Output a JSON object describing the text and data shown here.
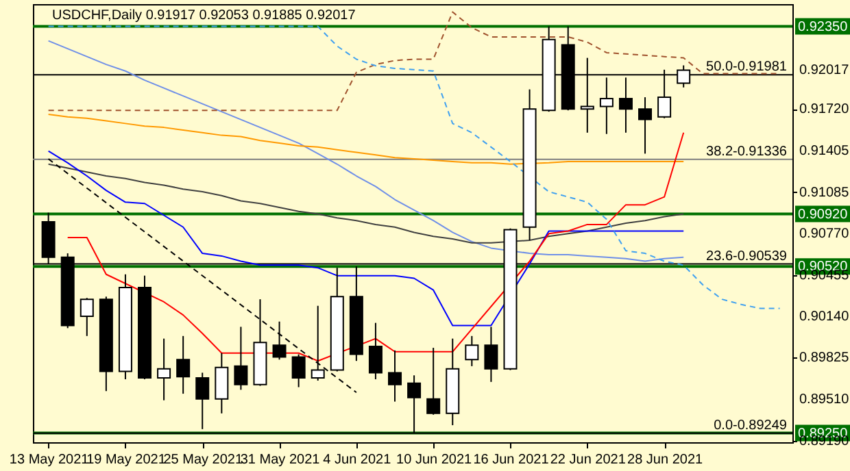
{
  "chart_data": {
    "type": "candlestick",
    "title": "USDCHF,Daily  0.91917 0.92053 0.91885 0.92017",
    "categories": [
      "13 May 2021",
      null,
      null,
      null,
      "19 May 2021",
      null,
      null,
      null,
      "25 May 2021",
      null,
      null,
      null,
      "31 May 2021",
      null,
      null,
      null,
      "4 Jun 2021",
      null,
      null,
      null,
      "10 Jun 2021",
      null,
      null,
      null,
      "16 Jun 2021",
      null,
      null,
      null,
      "22 Jun 2021",
      null,
      null,
      null,
      "28 Jun 2021",
      null,
      null,
      null,
      null,
      null,
      null
    ],
    "ohlc": [
      [
        0.9086,
        0.9093,
        0.9054,
        0.9059
      ],
      [
        0.9059,
        0.9062,
        0.9005,
        0.9007
      ],
      [
        0.9014,
        0.9028,
        0.8999,
        0.9027
      ],
      [
        0.9027,
        0.9029,
        0.8957,
        0.8972
      ],
      [
        0.8972,
        0.9046,
        0.8966,
        0.9036
      ],
      [
        0.9036,
        0.9045,
        0.8966,
        0.8967
      ],
      [
        0.8967,
        0.8997,
        0.895,
        0.8974
      ],
      [
        0.8981,
        0.8999,
        0.8955,
        0.8968
      ],
      [
        0.8967,
        0.8971,
        0.8928,
        0.8951
      ],
      [
        0.8951,
        0.8986,
        0.894,
        0.8975
      ],
      [
        0.8976,
        0.9006,
        0.8958,
        0.8962
      ],
      [
        0.8962,
        0.9027,
        0.8961,
        0.8994
      ],
      [
        0.8992,
        0.901,
        0.8981,
        0.8983
      ],
      [
        0.8983,
        0.8985,
        0.896,
        0.8967
      ],
      [
        0.8967,
        0.9022,
        0.8965,
        0.8973
      ],
      [
        0.8973,
        0.9051,
        0.8972,
        0.9029
      ],
      [
        0.9029,
        0.9052,
        0.898,
        0.8985
      ],
      [
        0.8991,
        0.9009,
        0.8966,
        0.8971
      ],
      [
        0.8971,
        0.8988,
        0.8949,
        0.8962
      ],
      [
        0.8963,
        0.8969,
        0.89249,
        0.8952
      ],
      [
        0.8951,
        0.899,
        0.8939,
        0.894
      ],
      [
        0.894,
        0.8997,
        0.8931,
        0.8974
      ],
      [
        0.8981,
        0.8999,
        0.8976,
        0.8992
      ],
      [
        0.8992,
        0.9006,
        0.8964,
        0.8974
      ],
      [
        0.8974,
        0.9081,
        0.8973,
        0.908
      ],
      [
        0.9082,
        0.9187,
        0.9072,
        0.9172
      ],
      [
        0.9171,
        0.9235,
        0.917,
        0.9225
      ],
      [
        0.9221,
        0.9235,
        0.9171,
        0.9172
      ],
      [
        0.9172,
        0.9211,
        0.9154,
        0.9174
      ],
      [
        0.9174,
        0.9196,
        0.9153,
        0.918
      ],
      [
        0.918,
        0.9196,
        0.9154,
        0.9172
      ],
      [
        0.9172,
        0.9181,
        0.9138,
        0.9164
      ],
      [
        0.9166,
        0.9202,
        0.9165,
        0.9181
      ],
      [
        0.91917,
        0.92053,
        0.91885,
        0.92017
      ],
      null,
      null,
      null,
      null,
      null
    ],
    "series": [
      {
        "type": "line",
        "color": "#6f8fe8",
        "values": [
          0.9224,
          0.9218,
          0.9212,
          0.9206,
          0.9201,
          0.9194,
          0.9188,
          0.9182,
          0.9176,
          0.917,
          0.9164,
          0.9158,
          0.9152,
          0.9146,
          0.9138,
          0.913,
          0.9121,
          0.9113,
          0.9103,
          0.9095,
          0.9087,
          0.9078,
          0.9071,
          0.9066,
          null,
          0.9062,
          0.9061,
          0.9061,
          0.906,
          0.9059,
          0.9058,
          0.9056,
          0.9058,
          0.9059,
          null,
          null,
          null,
          null,
          null
        ]
      },
      {
        "type": "line",
        "color": "#ff9900",
        "values": [
          0.9168,
          0.9166,
          0.9165,
          0.9163,
          0.9161,
          0.9159,
          0.9158,
          0.9156,
          0.9154,
          0.9152,
          0.9151,
          0.9148,
          0.9146,
          0.9144,
          0.9143,
          0.9141,
          0.9139,
          0.9137,
          0.9135,
          0.9134,
          0.9133,
          0.9132,
          0.9131,
          0.9131,
          0.913,
          null,
          0.9131,
          0.9132,
          0.9132,
          0.9132,
          0.9132,
          0.9132,
          0.9132,
          0.9132,
          null,
          null,
          null,
          null,
          null
        ]
      },
      {
        "type": "line",
        "color": "#404040",
        "values": [
          0.913,
          0.9127,
          0.9124,
          0.9121,
          0.9119,
          0.9116,
          0.9114,
          0.9111,
          0.9109,
          0.9106,
          0.9102,
          0.91,
          0.9097,
          0.9094,
          0.9092,
          0.9089,
          0.9087,
          0.9084,
          0.9082,
          0.9078,
          0.9075,
          0.9073,
          0.907,
          0.907,
          null,
          0.9072,
          0.9075,
          0.9077,
          0.9079,
          0.9082,
          0.9085,
          0.9087,
          0.909,
          0.9092,
          null,
          null,
          null,
          null,
          null
        ]
      },
      {
        "type": "line",
        "color": "#0000ff",
        "values": [
          0.914,
          0.9131,
          0.9121,
          0.911,
          0.9101,
          0.91,
          0.9091,
          0.9082,
          0.9062,
          0.906,
          0.9056,
          0.9053,
          0.9053,
          0.9053,
          0.9051,
          0.9045,
          0.9045,
          0.9045,
          0.9045,
          0.9043,
          0.9034,
          0.9007,
          0.9007,
          0.9007,
          null,
          0.9054,
          0.9079,
          0.9079,
          0.9079,
          0.9079,
          0.9079,
          0.9079,
          0.9079,
          0.9079,
          null,
          null,
          null,
          null,
          null
        ]
      },
      {
        "type": "line",
        "color": "#ff0000",
        "values": [
          null,
          0.9074,
          0.9074,
          0.9046,
          null,
          null,
          0.9025,
          0.9015,
          0.9001,
          0.8986,
          0.8986,
          null,
          null,
          0.8986,
          0.898,
          null,
          null,
          0.8997,
          0.8987,
          0.8987,
          0.8987,
          0.8987,
          null,
          null,
          null,
          0.9056,
          0.9077,
          0.9079,
          0.9084,
          0.9084,
          0.9099,
          0.9099,
          0.9105,
          0.9154,
          null,
          null,
          null,
          null,
          null
        ]
      },
      {
        "type": "line",
        "color": "#a0522d",
        "line_style": "dashed",
        "values": [
          0.9171,
          0.9171,
          0.9171,
          0.9171,
          0.9171,
          0.9171,
          0.9171,
          0.9171,
          0.9171,
          0.9171,
          0.9171,
          0.9171,
          0.9171,
          0.9171,
          0.9171,
          0.9171,
          0.92,
          0.9206,
          0.9209,
          0.921,
          0.921,
          0.9246,
          0.9234,
          0.9227,
          0.9227,
          0.9227,
          0.9227,
          0.9227,
          0.9223,
          0.9215,
          0.9214,
          0.9213,
          0.9212,
          0.9211,
          0.9199,
          0.9199,
          0.9199,
          0.9199,
          0.9199
        ]
      },
      {
        "type": "line",
        "color": "#3fa0f0",
        "line_style": "dashed",
        "values": [
          0.9235,
          0.9235,
          0.9235,
          0.9235,
          0.9235,
          0.9235,
          0.9235,
          0.9235,
          0.9235,
          0.9235,
          0.9235,
          0.9235,
          0.9235,
          0.9235,
          0.9235,
          0.922,
          0.921,
          0.9205,
          0.9203,
          0.9202,
          0.9201,
          0.9161,
          0.9154,
          0.9143,
          0.9132,
          null,
          0.9109,
          0.9105,
          0.9101,
          0.9088,
          0.9064,
          0.9062,
          0.9056,
          0.9053,
          0.9038,
          0.9027,
          0.9023,
          0.902,
          0.902
        ]
      },
      {
        "type": "line",
        "color": "#000000",
        "line_style": "dashed",
        "x": [
          "13 May 2021",
          "4 Jun 2021"
        ],
        "values": [
          0.9134,
          0.8956
        ]
      }
    ],
    "ylim": [
      0.8918,
      0.9252
    ],
    "yticks": [
      {
        "value": 0.92017,
        "label": "0.92017"
      },
      {
        "value": 0.9172,
        "label": "0.91720"
      },
      {
        "value": 0.91405,
        "label": "0.91405"
      },
      {
        "value": 0.91085,
        "label": "0.91085"
      },
      {
        "value": 0.9077,
        "label": "0.90770"
      },
      {
        "value": 0.90455,
        "label": "0.90455"
      },
      {
        "value": 0.9014,
        "label": "0.90140"
      },
      {
        "value": 0.89825,
        "label": "0.89825"
      },
      {
        "value": 0.8951,
        "label": "0.89510"
      },
      {
        "value": 0.8919,
        "label": "0.89190"
      }
    ],
    "ref_lines": [
      {
        "axis": "y",
        "value": 0.9235,
        "label": "0.92350",
        "color": "#007000"
      },
      {
        "axis": "y",
        "value": 0.91981,
        "color": "#000000"
      },
      {
        "axis": "y",
        "value": 0.91336,
        "color": "#808080"
      },
      {
        "axis": "y",
        "value": 0.9092,
        "label": "0.90920",
        "color": "#007000"
      },
      {
        "axis": "y",
        "value": 0.90539,
        "color": "#000000"
      },
      {
        "axis": "y",
        "value": 0.9052,
        "label": "0.90520",
        "color": "#007000"
      },
      {
        "axis": "y",
        "value": 0.89249,
        "color": "#000000"
      },
      {
        "axis": "y",
        "value": 0.8925,
        "label": "0.89250",
        "color": "#007000"
      }
    ],
    "annotations": [
      {
        "text": "50.0-0.91981",
        "y": 0.91981
      },
      {
        "text": "38.2-0.91336",
        "y": 0.91336
      },
      {
        "text": "23.6-0.90539",
        "y": 0.90539
      },
      {
        "text": "0.0-0.89249",
        "y": 0.89249
      }
    ],
    "grid": false
  }
}
